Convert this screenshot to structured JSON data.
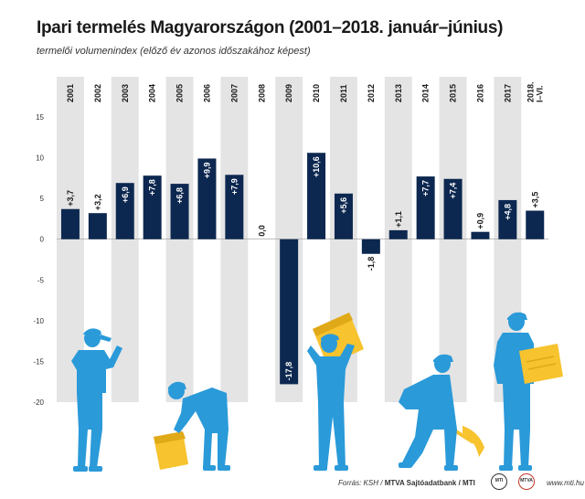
{
  "title": "Ipari termelés Magyarországon (2001–2018. január–június)",
  "subtitle": "termelői volumenindex (előző év azonos időszakához képest)",
  "chart_data": {
    "type": "bar",
    "categories": [
      "2001",
      "2002",
      "2003",
      "2004",
      "2005",
      "2006",
      "2007",
      "2008",
      "2009",
      "2010",
      "2011",
      "2012",
      "2013",
      "2014",
      "2015",
      "2016",
      "2017",
      "2018. I–VI."
    ],
    "values": [
      3.7,
      3.2,
      6.9,
      7.8,
      6.8,
      9.9,
      7.9,
      0.0,
      -17.8,
      10.6,
      5.6,
      -1.8,
      1.1,
      7.7,
      7.4,
      0.9,
      4.8,
      3.5
    ],
    "value_labels": [
      "+3,7",
      "+3,2",
      "+6,9",
      "+7,8",
      "+6,8",
      "+9,9",
      "+7,9",
      "0,0",
      "-17,8",
      "+10,6",
      "+5,6",
      "-1,8",
      "+1,1",
      "+7,7",
      "+7,4",
      "+0,9",
      "+4,8",
      "+3,5"
    ],
    "y_ticks": [
      15,
      10,
      5,
      0,
      -5,
      -10,
      -15,
      -20
    ],
    "y_tick_labels": [
      "15",
      "10",
      "5",
      "0",
      "-5",
      "-10",
      "-15",
      "-20"
    ],
    "ylim": [
      -20,
      15
    ],
    "bar_color": "#0d2850",
    "band_color": "#e4e4e4",
    "grid": false
  },
  "footer": {
    "source_label": "Forrás: KSH / ",
    "agency": "MTVA Sajtóadatbank",
    "agency_sep": " / ",
    "mti": "MTI",
    "website": "www.mti.hu"
  },
  "logos": {
    "logo1": "MTI",
    "logo2": "MTVA"
  },
  "colors": {
    "worker_blue": "#2a9ad9",
    "box_yellow": "#f7c32e"
  }
}
